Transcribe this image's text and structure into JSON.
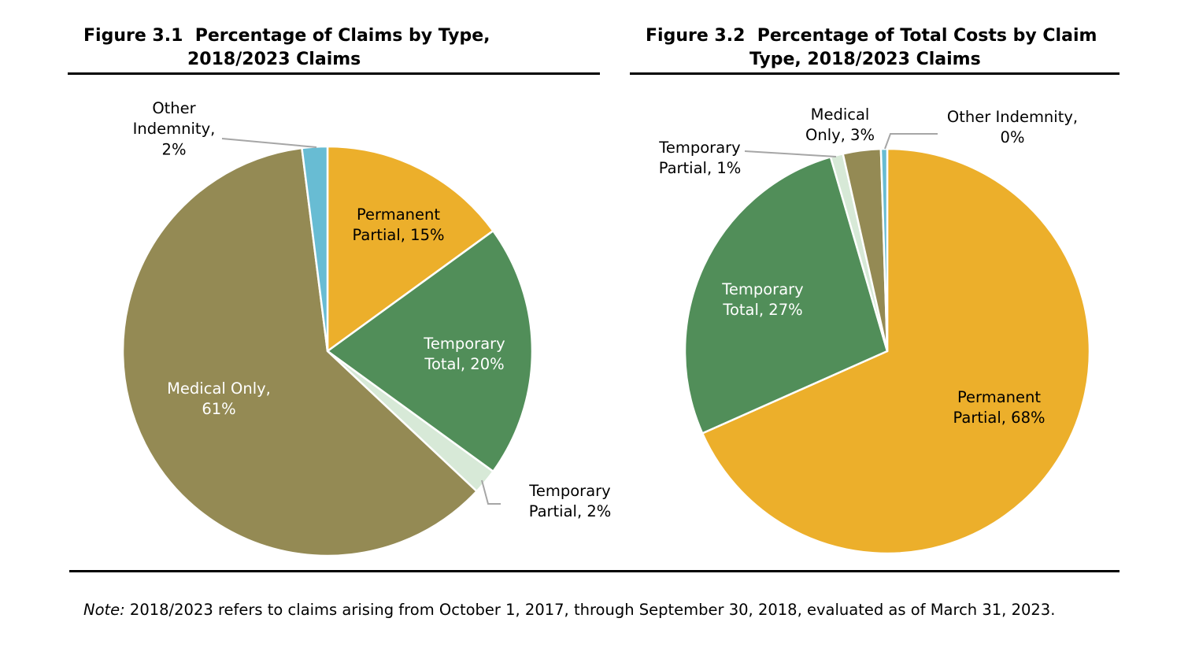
{
  "figure_1": {
    "number": "Figure 3.1",
    "title_line1": "Percentage of Claims by Type,",
    "title_line2": "2018/2023 Claims"
  },
  "figure_2": {
    "number": "Figure 3.2",
    "title_line1": "Percentage of Total Costs by Claim",
    "title_line2": "Type, 2018/2023 Claims"
  },
  "note": {
    "label": "Note:",
    "text": " 2018/2023 refers to claims arising from October 1, 2017, through September 30, 2018, evaluated as of March 31, 2023."
  },
  "colors": {
    "permanent_partial": "#ECAF2B",
    "temporary_total": "#518E59",
    "temporary_partial": "#D7E9D7",
    "medical_only": "#948A54",
    "other_indemnity": "#68BCD3"
  },
  "chart_data": [
    {
      "type": "pie",
      "title": "Figure 3.1 Percentage of Claims by Type, 2018/2023 Claims",
      "slices": [
        {
          "key": "permanent_partial",
          "label_lines": [
            "Permanent",
            "Partial, 15%"
          ],
          "value": 15
        },
        {
          "key": "temporary_total",
          "label_lines": [
            "Temporary",
            "Total, 20%"
          ],
          "value": 20
        },
        {
          "key": "temporary_partial",
          "label_lines": [
            "Temporary",
            "Partial, 2%"
          ],
          "value": 2
        },
        {
          "key": "medical_only",
          "label_lines": [
            "Medical Only,",
            "61%"
          ],
          "value": 61
        },
        {
          "key": "other_indemnity",
          "label_lines": [
            "Other",
            "Indemnity,",
            "2%"
          ],
          "value": 2
        }
      ]
    },
    {
      "type": "pie",
      "title": "Figure 3.2 Percentage of Total Costs by Claim Type, 2018/2023 Claims",
      "slices": [
        {
          "key": "permanent_partial",
          "label_lines": [
            "Permanent",
            "Partial, 68%"
          ],
          "value": 68
        },
        {
          "key": "temporary_total",
          "label_lines": [
            "Temporary",
            "Total, 27%"
          ],
          "value": 27
        },
        {
          "key": "temporary_partial",
          "label_lines": [
            "Temporary",
            "Partial, 1%"
          ],
          "value": 1
        },
        {
          "key": "medical_only",
          "label_lines": [
            "Medical",
            "Only, 3%"
          ],
          "value": 3
        },
        {
          "key": "other_indemnity",
          "label_lines": [
            "Other Indemnity,",
            "0%"
          ],
          "value": 0.5
        }
      ]
    }
  ]
}
